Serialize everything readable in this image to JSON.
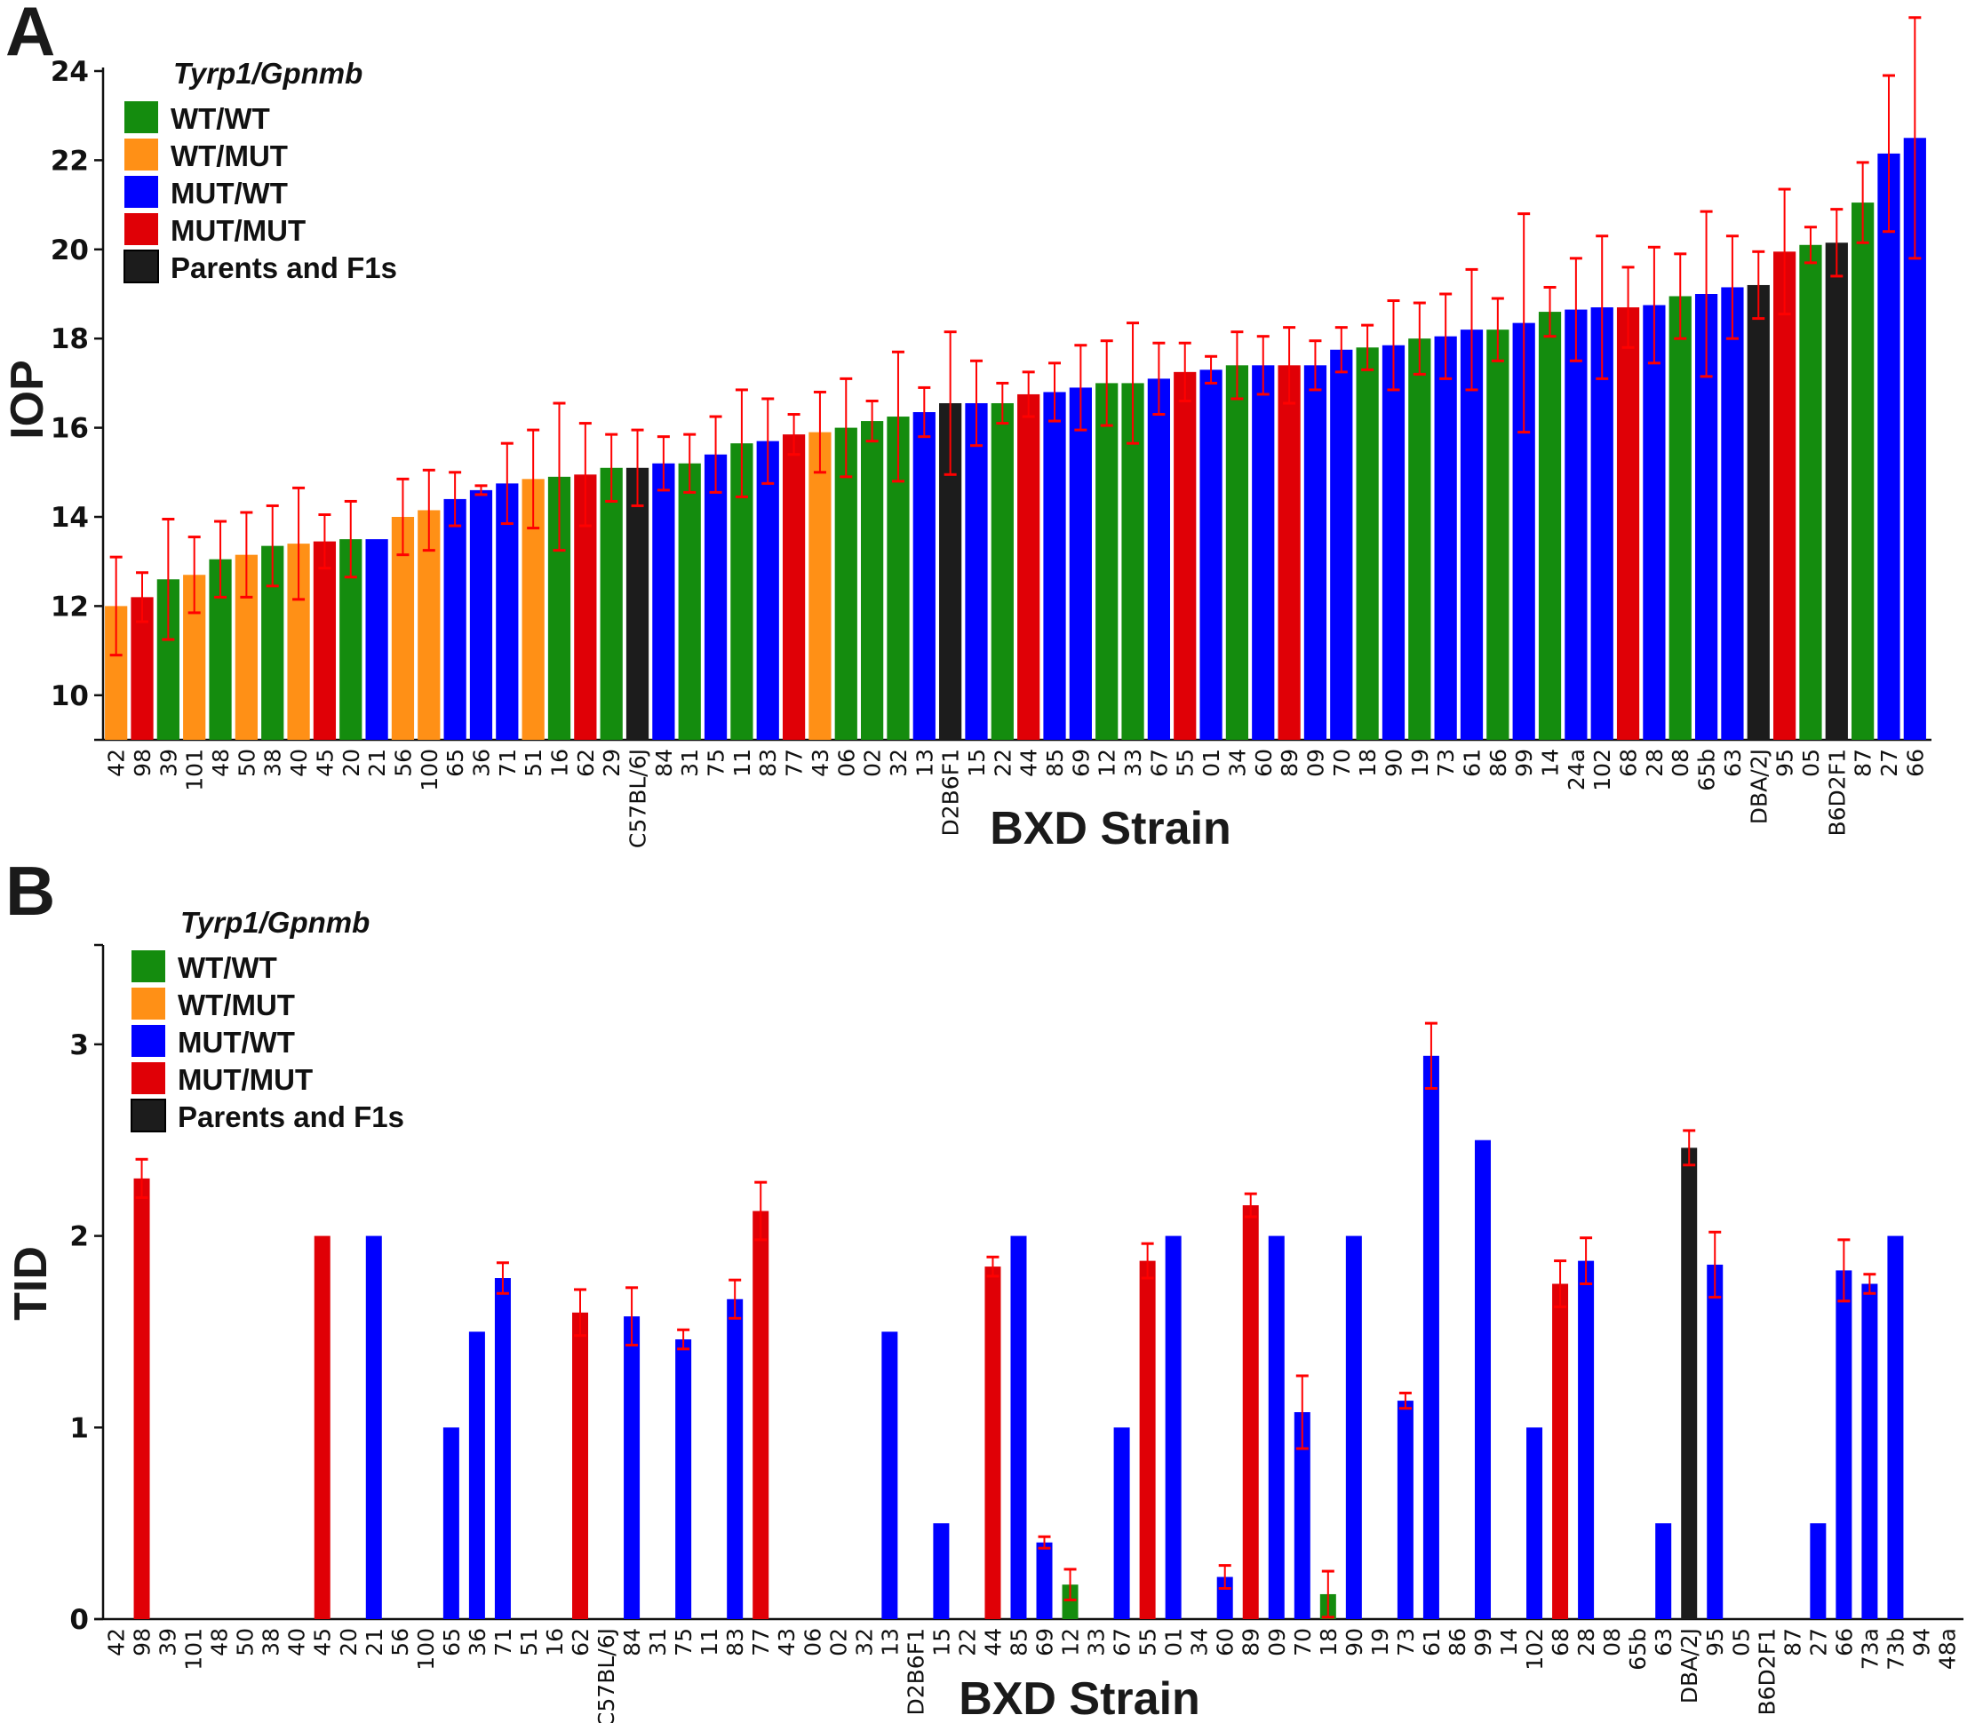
{
  "panels": {
    "a_letter": "A",
    "b_letter": "B"
  },
  "legend": {
    "title": "Tyrp1/Gpnmb",
    "items": [
      {
        "label": "WT/WT",
        "key": "G",
        "color": "#148c0e"
      },
      {
        "label": "WT/MUT",
        "key": "O",
        "color": "#ff9016"
      },
      {
        "label": "MUT/WT",
        "key": "B",
        "color": "#0000ff"
      },
      {
        "label": "MUT/MUT",
        "key": "R",
        "color": "#e00006"
      },
      {
        "label": "Parents and F1s",
        "key": "K",
        "color": "#1c1c1c"
      }
    ]
  },
  "errorbar_color": "#ff0000",
  "chart_data": [
    {
      "type": "bar",
      "title": "",
      "xlabel": "BXD Strain",
      "ylabel": "IOP",
      "ylim": [
        9,
        24
      ],
      "yticks": [
        10,
        12,
        14,
        16,
        18,
        20,
        22,
        24
      ],
      "legend_position": "top-left",
      "grid": false,
      "categories": [
        "42",
        "98",
        "39",
        "101",
        "48",
        "50",
        "38",
        "40",
        "45",
        "20",
        "21",
        "56",
        "100",
        "65",
        "36",
        "71",
        "51",
        "16",
        "62",
        "29",
        "C57BL/6J",
        "84",
        "31",
        "75",
        "11",
        "83",
        "77",
        "43",
        "06",
        "02",
        "32",
        "13",
        "D2B6F1",
        "15",
        "22",
        "44",
        "85",
        "69",
        "12",
        "33",
        "67",
        "55",
        "01",
        "34",
        "60",
        "89",
        "09",
        "70",
        "18",
        "90",
        "19",
        "73",
        "61",
        "86",
        "99",
        "14",
        "24a",
        "102",
        "68",
        "28",
        "08",
        "65b",
        "63",
        "DBA/2J",
        "95",
        "05",
        "B6D2F1",
        "87",
        "27",
        "66"
      ],
      "genotype": [
        "O",
        "R",
        "G",
        "O",
        "G",
        "O",
        "G",
        "O",
        "R",
        "G",
        "B",
        "O",
        "O",
        "B",
        "B",
        "B",
        "O",
        "G",
        "R",
        "G",
        "K",
        "B",
        "G",
        "B",
        "G",
        "B",
        "R",
        "O",
        "G",
        "G",
        "G",
        "B",
        "K",
        "B",
        "G",
        "R",
        "B",
        "B",
        "G",
        "G",
        "B",
        "R",
        "B",
        "G",
        "B",
        "R",
        "B",
        "B",
        "G",
        "B",
        "G",
        "B",
        "B",
        "G",
        "B",
        "G",
        "B",
        "B",
        "R",
        "B",
        "G",
        "B",
        "B",
        "K",
        "R",
        "G",
        "K",
        "G",
        "B",
        "B"
      ],
      "values": [
        12.0,
        12.2,
        12.6,
        12.7,
        13.05,
        13.15,
        13.35,
        13.4,
        13.45,
        13.5,
        13.5,
        14.0,
        14.15,
        14.4,
        14.6,
        14.75,
        14.85,
        14.9,
        14.95,
        15.1,
        15.1,
        15.2,
        15.2,
        15.4,
        15.65,
        15.7,
        15.85,
        15.9,
        16.0,
        16.15,
        16.25,
        16.35,
        16.55,
        16.55,
        16.55,
        16.75,
        16.8,
        16.9,
        17.0,
        17.0,
        17.1,
        17.25,
        17.3,
        17.4,
        17.4,
        17.4,
        17.4,
        17.75,
        17.8,
        17.85,
        18.0,
        18.05,
        18.2,
        18.2,
        18.35,
        18.6,
        18.65,
        18.7,
        18.7,
        18.75,
        18.95,
        19.0,
        19.15,
        19.2,
        19.95,
        20.1,
        20.15,
        21.05,
        22.15,
        22.5
      ],
      "errors": [
        1.1,
        0.55,
        1.35,
        0.85,
        0.85,
        0.95,
        0.9,
        1.25,
        0.6,
        0.85,
        0,
        0.85,
        0.9,
        0.6,
        0.1,
        0.9,
        1.1,
        1.65,
        1.15,
        0.75,
        0.85,
        0.6,
        0.65,
        0.85,
        1.2,
        0.95,
        0.45,
        0.9,
        1.1,
        0.45,
        1.45,
        0.55,
        1.6,
        0.95,
        0.45,
        0.5,
        0.65,
        0.95,
        0.95,
        1.35,
        0.8,
        0.65,
        0.3,
        0.75,
        0.65,
        0.85,
        0.55,
        0.5,
        0.5,
        1.0,
        0.8,
        0.95,
        1.35,
        0.7,
        2.45,
        0.55,
        1.15,
        1.6,
        0.9,
        1.3,
        0.95,
        1.85,
        1.15,
        0.75,
        1.4,
        0.4,
        0.75,
        0.9,
        1.75,
        2.7
      ]
    },
    {
      "type": "bar",
      "title": "",
      "xlabel": "BXD Strain",
      "ylabel": "TID",
      "ylim": [
        0,
        3.5
      ],
      "yticks": [
        0,
        1,
        2,
        3
      ],
      "legend_position": "top-left",
      "grid": false,
      "categories": [
        "42",
        "98",
        "39",
        "101",
        "48",
        "50",
        "38",
        "40",
        "45",
        "20",
        "21",
        "56",
        "100",
        "65",
        "36",
        "71",
        "51",
        "16",
        "62",
        "C57BL/6J",
        "84",
        "31",
        "75",
        "11",
        "83",
        "77",
        "43",
        "06",
        "02",
        "32",
        "13",
        "D2B6F1",
        "15",
        "22",
        "44",
        "85",
        "69",
        "12",
        "33",
        "67",
        "55",
        "01",
        "34",
        "60",
        "89",
        "09",
        "70",
        "18",
        "90",
        "19",
        "73",
        "61",
        "86",
        "99",
        "14",
        "102",
        "68",
        "28",
        "08",
        "65b",
        "63",
        "DBA/2J",
        "95",
        "05",
        "B6D2F1",
        "87",
        "27",
        "66",
        "73a",
        "73b",
        "94",
        "48a"
      ],
      "genotype": [
        "O",
        "R",
        "G",
        "O",
        "G",
        "O",
        "G",
        "O",
        "R",
        "G",
        "B",
        "O",
        "O",
        "B",
        "B",
        "B",
        "O",
        "G",
        "R",
        "K",
        "B",
        "G",
        "B",
        "G",
        "B",
        "R",
        "O",
        "G",
        "G",
        "G",
        "B",
        "K",
        "B",
        "G",
        "R",
        "B",
        "B",
        "G",
        "G",
        "B",
        "R",
        "B",
        "G",
        "B",
        "R",
        "B",
        "B",
        "G",
        "B",
        "G",
        "B",
        "B",
        "G",
        "B",
        "G",
        "B",
        "R",
        "B",
        "G",
        "B",
        "B",
        "K",
        "B",
        "G",
        "K",
        "G",
        "B",
        "B",
        "B",
        "B",
        "B",
        "B"
      ],
      "values": [
        0,
        2.3,
        0,
        0,
        0,
        0,
        0,
        0,
        2.0,
        0,
        2.0,
        0,
        0,
        1.0,
        1.5,
        1.78,
        0,
        0,
        1.6,
        0,
        1.58,
        0,
        1.46,
        0,
        1.67,
        2.13,
        0,
        0,
        0,
        0,
        1.5,
        0,
        0.5,
        0,
        1.84,
        2.0,
        0.4,
        0.18,
        0,
        1.0,
        1.87,
        2.0,
        0,
        0.22,
        2.16,
        2.0,
        1.08,
        0.13,
        2.0,
        0,
        1.14,
        2.94,
        0,
        2.5,
        0,
        1.0,
        1.75,
        1.87,
        0,
        0,
        0.5,
        2.46,
        1.85,
        0,
        0,
        0,
        0.5,
        1.82,
        1.75,
        2.0,
        0,
        0
      ],
      "errors": [
        0,
        0.1,
        0,
        0,
        0,
        0,
        0,
        0,
        0,
        0,
        0,
        0,
        0,
        0,
        0,
        0.08,
        0,
        0,
        0.12,
        0,
        0.15,
        0,
        0.05,
        0,
        0.1,
        0.15,
        0,
        0,
        0,
        0,
        0,
        0,
        0,
        0,
        0.05,
        0,
        0.03,
        0.08,
        0,
        0,
        0.09,
        0,
        0,
        0.06,
        0.06,
        0,
        0.19,
        0.12,
        0,
        0,
        0.04,
        0.17,
        0,
        0,
        0,
        0,
        0.12,
        0.12,
        0,
        0,
        0,
        0.09,
        0.17,
        0,
        0,
        0,
        0,
        0.16,
        0.05,
        0,
        0,
        0
      ]
    }
  ]
}
